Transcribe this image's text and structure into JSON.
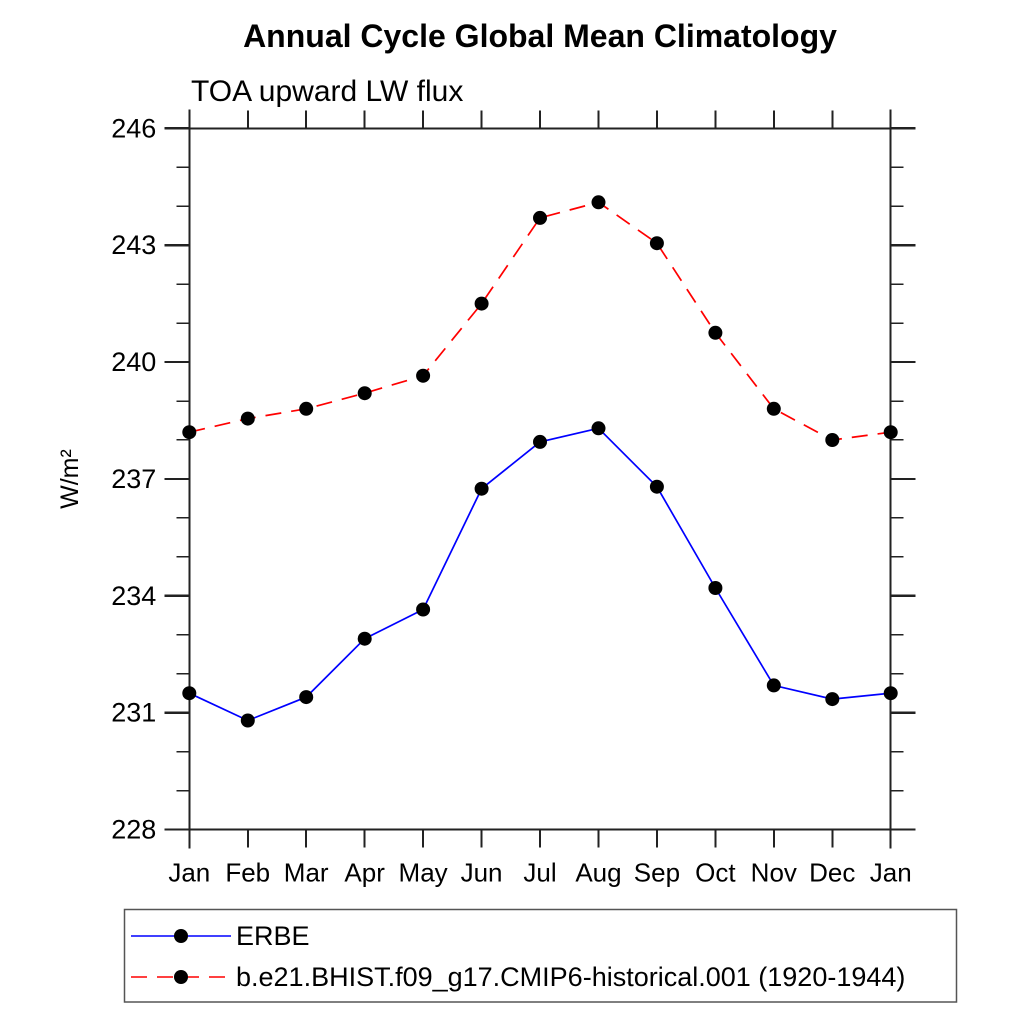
{
  "chart_data": {
    "type": "line",
    "title": "Annual Cycle Global Mean Climatology",
    "subtitle": "TOA upward LW flux",
    "xlabel": "",
    "ylabel": "W/m²",
    "x_categories": [
      "Jan",
      "Feb",
      "Mar",
      "Apr",
      "May",
      "Jun",
      "Jul",
      "Aug",
      "Sep",
      "Oct",
      "Nov",
      "Dec",
      "Jan"
    ],
    "ylim": [
      228,
      246
    ],
    "ytick_major": [
      228,
      231,
      234,
      237,
      240,
      243,
      246
    ],
    "ytick_minor_step": 1,
    "grid": false,
    "legend_position": "bottom-left box",
    "axis_color": "#222222",
    "series": [
      {
        "name": "ERBE",
        "color": "#0000ff",
        "line_style": "solid",
        "marker": "filled-circle",
        "marker_color": "#000000",
        "values": [
          231.5,
          230.8,
          231.4,
          232.9,
          233.65,
          236.75,
          237.95,
          238.3,
          236.8,
          234.2,
          231.7,
          231.35,
          231.5
        ]
      },
      {
        "name": "b.e21.BHIST.f09_g17.CMIP6-historical.001 (1920-1944)",
        "color": "#ff0000",
        "line_style": "dashed",
        "marker": "filled-circle",
        "marker_color": "#000000",
        "values": [
          238.2,
          238.55,
          238.8,
          239.2,
          239.65,
          241.5,
          243.7,
          244.1,
          243.05,
          240.75,
          238.8,
          238.0,
          238.2
        ]
      }
    ]
  }
}
